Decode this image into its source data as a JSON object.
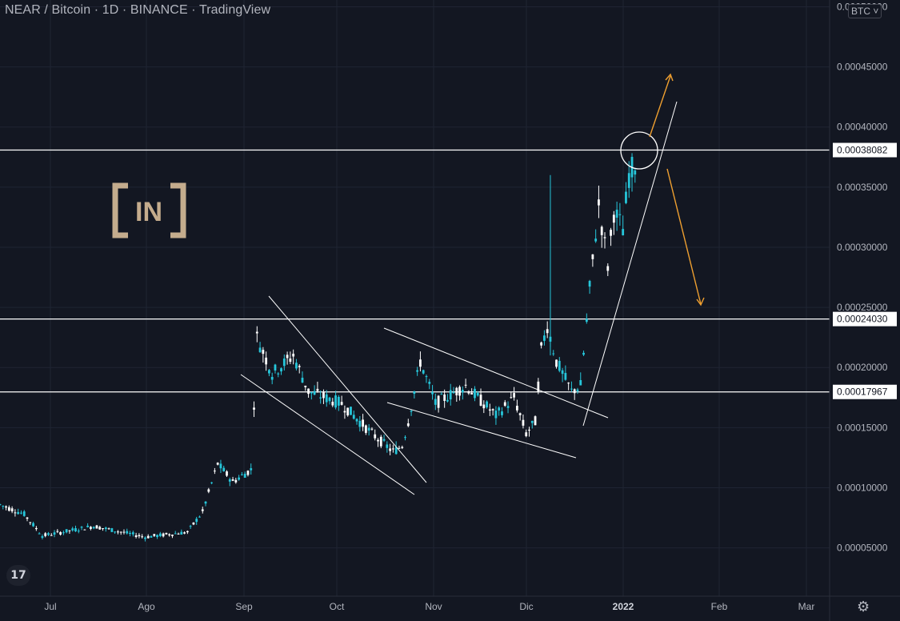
{
  "header": {
    "title": "NEAR / Bitcoin · 1D · BINANCE · TradingView",
    "currency_button": "BTC ˅"
  },
  "colors": {
    "background": "#131722",
    "up": "#26c6da",
    "down": "#ffffff",
    "grid": "#1f2433",
    "axis_text": "#b2b5be",
    "level_line": "#ffffff",
    "arrow": "#f0a030",
    "watermark": "#c4ac8d"
  },
  "watermark_logo": {
    "text": "IN",
    "icon": "beincrypto-logo"
  },
  "tradingview_logo_icon": "tradingview-logo-icon",
  "settings_icon": "gear-icon",
  "chart_data": {
    "type": "candlestick",
    "title": "NEAR / Bitcoin · 1D · BINANCE",
    "ylim": [
      2e-05,
      0.00052
    ],
    "y_ticks": [
      "0.00005000",
      "0.00010000",
      "0.00015000",
      "0.00020000",
      "0.00025000",
      "0.00030000",
      "0.00035000",
      "0.00040000",
      "0.00045000",
      "0.00050000"
    ],
    "x_ticks": [
      "Jul",
      "Ago",
      "Sep",
      "Oct",
      "Nov",
      "Dic",
      "2022",
      "Feb",
      "Mar"
    ],
    "grid": true,
    "horizontal_levels": [
      {
        "value": 0.00038082,
        "label": "0.00038082"
      },
      {
        "value": 0.0002403,
        "label": "0.00024030"
      },
      {
        "value": 0.00017967,
        "label": "0.00017967"
      }
    ],
    "annotations": [
      "descending channel (Sep–Oct)",
      "descending channel (Oct–Dec)",
      "ascending support line (Dec–Jan)",
      "circle at top (~0.00038)",
      "up arrow",
      "down arrow"
    ],
    "price_path": [
      {
        "date": "2021-06-14",
        "price": 8.6e-05
      },
      {
        "date": "2021-06-22",
        "price": 7.8e-05
      },
      {
        "date": "2021-06-28",
        "price": 6e-05
      },
      {
        "date": "2021-07-15",
        "price": 6.8e-05
      },
      {
        "date": "2021-08-01",
        "price": 5.9e-05
      },
      {
        "date": "2021-08-15",
        "price": 6.3e-05
      },
      {
        "date": "2021-08-20",
        "price": 8e-05
      },
      {
        "date": "2021-08-25",
        "price": 0.00012
      },
      {
        "date": "2021-08-30",
        "price": 0.000105
      },
      {
        "date": "2021-09-05",
        "price": 0.000115
      },
      {
        "date": "2021-09-07",
        "price": 0.000225
      },
      {
        "date": "2021-09-12",
        "price": 0.000195
      },
      {
        "date": "2021-09-19",
        "price": 0.00021
      },
      {
        "date": "2021-09-24",
        "price": 0.00018
      },
      {
        "date": "2021-10-05",
        "price": 0.00017
      },
      {
        "date": "2021-10-15",
        "price": 0.000145
      },
      {
        "date": "2021-10-22",
        "price": 0.00013
      },
      {
        "date": "2021-10-25",
        "price": 0.000135
      },
      {
        "date": "2021-10-27",
        "price": 0.000155
      },
      {
        "date": "2021-10-31",
        "price": 0.000205
      },
      {
        "date": "2021-11-05",
        "price": 0.00017
      },
      {
        "date": "2021-11-15",
        "price": 0.000185
      },
      {
        "date": "2021-11-25",
        "price": 0.00016
      },
      {
        "date": "2021-12-01",
        "price": 0.000175
      },
      {
        "date": "2021-12-05",
        "price": 0.000145
      },
      {
        "date": "2021-12-08",
        "price": 0.000155
      },
      {
        "date": "2021-12-10",
        "price": 0.000215
      },
      {
        "date": "2021-12-12",
        "price": 0.000235
      },
      {
        "date": "2021-12-15",
        "price": 0.000205
      },
      {
        "date": "2021-12-20",
        "price": 0.00018
      },
      {
        "date": "2021-12-23",
        "price": 0.000185
      },
      {
        "date": "2021-12-26",
        "price": 0.000265
      },
      {
        "date": "2021-12-29",
        "price": 0.000335
      },
      {
        "date": "2022-01-01",
        "price": 0.000285
      },
      {
        "date": "2022-01-03",
        "price": 0.00033
      },
      {
        "date": "2022-01-06",
        "price": 0.000315
      },
      {
        "date": "2022-01-08",
        "price": 0.00036
      },
      {
        "date": "2022-01-10",
        "price": 0.00037
      }
    ]
  }
}
